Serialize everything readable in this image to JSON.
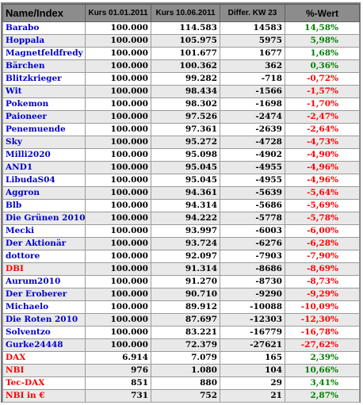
{
  "table": {
    "headers": {
      "name": "Name/Index",
      "kurs1": "Kurs 01.01.2011",
      "kurs2": "Kurs 10.06.2011",
      "diff": "Differ. KW 23",
      "pct": "%-Wert"
    },
    "colors": {
      "name_blue": "#0000cc",
      "name_red": "#ff0000",
      "pct_green": "#008000",
      "pct_red": "#ff0000",
      "header_bg": "#8c8c8c",
      "row_alt_bg": "#e9e9e9"
    },
    "rows": [
      {
        "name": "Barabo",
        "name_color": "blue",
        "kurs1": "100.000",
        "kurs2": "114.583",
        "diff": "14583",
        "pct": "14,58%",
        "pct_color": "green"
      },
      {
        "name": "Hoppala",
        "name_color": "blue",
        "kurs1": "100.000",
        "kurs2": "105.975",
        "diff": "5975",
        "pct": "5,98%",
        "pct_color": "green"
      },
      {
        "name": "Magnetfeldfredy",
        "name_color": "blue",
        "kurs1": "100.000",
        "kurs2": "101.677",
        "diff": "1677",
        "pct": "1,68%",
        "pct_color": "green"
      },
      {
        "name": "Bärchen",
        "name_color": "blue",
        "kurs1": "100.000",
        "kurs2": "100.362",
        "diff": "362",
        "pct": "0,36%",
        "pct_color": "green"
      },
      {
        "name": "Blitzkrieger",
        "name_color": "blue",
        "kurs1": "100.000",
        "kurs2": "99.282",
        "diff": "-718",
        "pct": "-0,72%",
        "pct_color": "red"
      },
      {
        "name": "Wit",
        "name_color": "blue",
        "kurs1": "100.000",
        "kurs2": "98.434",
        "diff": "-1566",
        "pct": "-1,57%",
        "pct_color": "red"
      },
      {
        "name": "Pokemon",
        "name_color": "blue",
        "kurs1": "100.000",
        "kurs2": "98.302",
        "diff": "-1698",
        "pct": "-1,70%",
        "pct_color": "red"
      },
      {
        "name": "Paioneer",
        "name_color": "blue",
        "kurs1": "100.000",
        "kurs2": "97.526",
        "diff": "-2474",
        "pct": "-2,47%",
        "pct_color": "red"
      },
      {
        "name": "Penemuende",
        "name_color": "blue",
        "kurs1": "100.000",
        "kurs2": "97.361",
        "diff": "-2639",
        "pct": "-2,64%",
        "pct_color": "red"
      },
      {
        "name": "Sky",
        "name_color": "blue",
        "kurs1": "100.000",
        "kurs2": "95.272",
        "diff": "-4728",
        "pct": "-4,73%",
        "pct_color": "red"
      },
      {
        "name": "Milli2020",
        "name_color": "blue",
        "kurs1": "100.000",
        "kurs2": "95.098",
        "diff": "-4902",
        "pct": "-4,90%",
        "pct_color": "red"
      },
      {
        "name": "AND1",
        "name_color": "blue",
        "kurs1": "100.000",
        "kurs2": "95.045",
        "diff": "-4955",
        "pct": "-4,96%",
        "pct_color": "red"
      },
      {
        "name": "LibudaS04",
        "name_color": "blue",
        "kurs1": "100.000",
        "kurs2": "95.045",
        "diff": "-4955",
        "pct": "-4,96%",
        "pct_color": "red"
      },
      {
        "name": "Aggron",
        "name_color": "blue",
        "kurs1": "100.000",
        "kurs2": "94.361",
        "diff": "-5639",
        "pct": "-5,64%",
        "pct_color": "red"
      },
      {
        "name": "Blb",
        "name_color": "blue",
        "kurs1": "100.000",
        "kurs2": "94.314",
        "diff": "-5686",
        "pct": "-5,69%",
        "pct_color": "red"
      },
      {
        "name": "Die Grünen 2010",
        "name_color": "blue",
        "kurs1": "100.000",
        "kurs2": "94.222",
        "diff": "-5778",
        "pct": "-5,78%",
        "pct_color": "red"
      },
      {
        "name": "Mecki",
        "name_color": "blue",
        "kurs1": "100.000",
        "kurs2": "93.997",
        "diff": "-6003",
        "pct": "-6,00%",
        "pct_color": "red"
      },
      {
        "name": "Der Aktionär",
        "name_color": "blue",
        "kurs1": "100.000",
        "kurs2": "93.724",
        "diff": "-6276",
        "pct": "-6,28%",
        "pct_color": "red"
      },
      {
        "name": "dottore",
        "name_color": "blue",
        "kurs1": "100.000",
        "kurs2": "92.097",
        "diff": "-7903",
        "pct": "-7,90%",
        "pct_color": "red"
      },
      {
        "name": "DBI",
        "name_color": "red",
        "kurs1": "100.000",
        "kurs2": "91.314",
        "diff": "-8686",
        "pct": "-8,69%",
        "pct_color": "red"
      },
      {
        "name": "Aurum2010",
        "name_color": "blue",
        "kurs1": "100.000",
        "kurs2": "91.270",
        "diff": "-8730",
        "pct": "-8,73%",
        "pct_color": "red"
      },
      {
        "name": "Der Eroberer",
        "name_color": "blue",
        "kurs1": "100.000",
        "kurs2": "90.710",
        "diff": "-9290",
        "pct": "-9,29%",
        "pct_color": "red"
      },
      {
        "name": "Michaelo",
        "name_color": "blue",
        "kurs1": "100.000",
        "kurs2": "89.912",
        "diff": "-10088",
        "pct": "-10,09%",
        "pct_color": "red"
      },
      {
        "name": "Die Roten 2010",
        "name_color": "blue",
        "kurs1": "100.000",
        "kurs2": "87.697",
        "diff": "-12303",
        "pct": "-12,30%",
        "pct_color": "red"
      },
      {
        "name": "Solventzo",
        "name_color": "blue",
        "kurs1": "100.000",
        "kurs2": "83.221",
        "diff": "-16779",
        "pct": "-16,78%",
        "pct_color": "red"
      },
      {
        "name": "Gurke24448",
        "name_color": "blue",
        "kurs1": "100.000",
        "kurs2": "72.379",
        "diff": "-27621",
        "pct": "-27,62%",
        "pct_color": "red"
      },
      {
        "name": "DAX",
        "name_color": "red",
        "kurs1": "6.914",
        "kurs2": "7.079",
        "diff": "165",
        "pct": "2,39%",
        "pct_color": "green"
      },
      {
        "name": "NBI",
        "name_color": "red",
        "kurs1": "976",
        "kurs2": "1.080",
        "diff": "104",
        "pct": "10,66%",
        "pct_color": "green"
      },
      {
        "name": "Tec-DAX",
        "name_color": "red",
        "kurs1": "851",
        "kurs2": "880",
        "diff": "29",
        "pct": "3,41%",
        "pct_color": "green"
      },
      {
        "name": "NBI in €",
        "name_color": "red",
        "kurs1": "731",
        "kurs2": "752",
        "diff": "21",
        "pct": "2,87%",
        "pct_color": "green"
      }
    ]
  }
}
